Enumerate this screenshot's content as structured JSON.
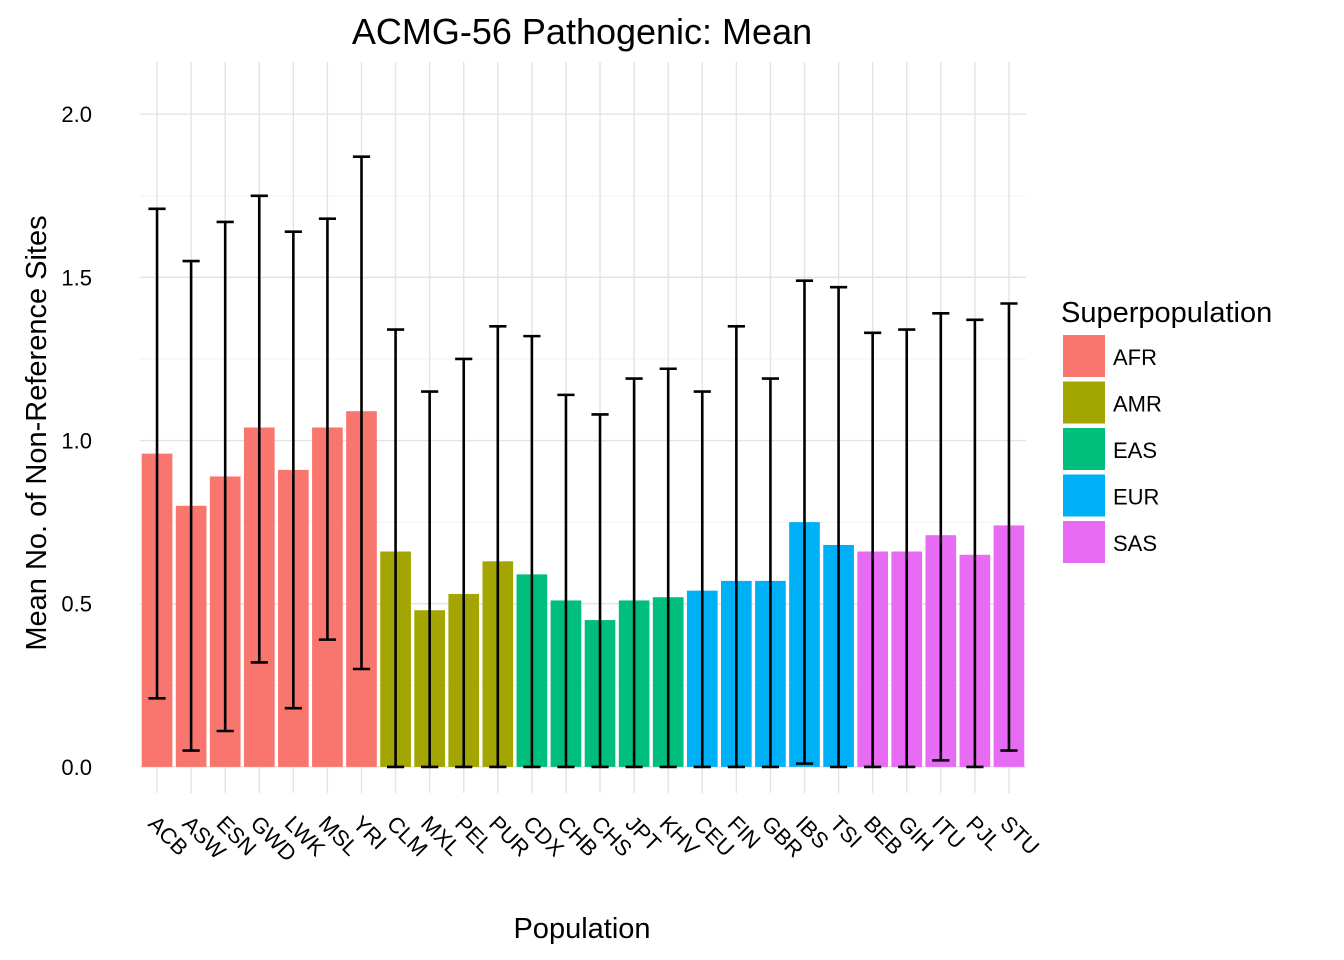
{
  "chart_data": {
    "type": "bar",
    "title": "ACMG-56 Pathogenic: Mean",
    "xlabel": "Population",
    "ylabel": "Mean No. of Non-Reference Sites",
    "ylim": [
      -0.08,
      2.16
    ],
    "yticks": [
      0.0,
      0.5,
      1.0,
      1.5,
      2.0
    ],
    "ytick_labels": [
      "0.0",
      "0.5",
      "1.0",
      "1.5",
      "2.0"
    ],
    "grid": true,
    "legend": {
      "title": "Superpopulation",
      "placement": "right",
      "entries": [
        {
          "name": "AFR",
          "color": "#F8766D"
        },
        {
          "name": "AMR",
          "color": "#A3A500"
        },
        {
          "name": "EAS",
          "color": "#00BF7D"
        },
        {
          "name": "EUR",
          "color": "#00B0F6"
        },
        {
          "name": "SAS",
          "color": "#E76BF3"
        }
      ]
    },
    "categories": [
      "ACB",
      "ASW",
      "ESN",
      "GWD",
      "LWK",
      "MSL",
      "YRI",
      "CLM",
      "MXL",
      "PEL",
      "PUR",
      "CDX",
      "CHB",
      "CHS",
      "JPT",
      "KHV",
      "CEU",
      "FIN",
      "GBR",
      "IBS",
      "TSI",
      "BEB",
      "GIH",
      "ITU",
      "PJL",
      "STU"
    ],
    "groups": [
      "AFR",
      "AFR",
      "AFR",
      "AFR",
      "AFR",
      "AFR",
      "AFR",
      "AMR",
      "AMR",
      "AMR",
      "AMR",
      "EAS",
      "EAS",
      "EAS",
      "EAS",
      "EAS",
      "EUR",
      "EUR",
      "EUR",
      "EUR",
      "EUR",
      "SAS",
      "SAS",
      "SAS",
      "SAS",
      "SAS"
    ],
    "values": [
      0.96,
      0.8,
      0.89,
      1.04,
      0.91,
      1.04,
      1.09,
      0.66,
      0.48,
      0.53,
      0.63,
      0.59,
      0.51,
      0.45,
      0.51,
      0.52,
      0.54,
      0.57,
      0.57,
      0.75,
      0.68,
      0.66,
      0.66,
      0.71,
      0.65,
      0.74
    ],
    "error_low": [
      0.21,
      0.05,
      0.11,
      0.32,
      0.18,
      0.39,
      0.3,
      0.0,
      0.0,
      0.0,
      0.0,
      0.0,
      0.0,
      0.0,
      0.0,
      0.0,
      0.0,
      0.0,
      0.0,
      0.01,
      0.0,
      0.0,
      0.0,
      0.02,
      0.0,
      0.05
    ],
    "error_high": [
      1.71,
      1.55,
      1.67,
      1.75,
      1.64,
      1.68,
      1.87,
      1.34,
      1.15,
      1.25,
      1.35,
      1.32,
      1.14,
      1.08,
      1.19,
      1.22,
      1.15,
      1.35,
      1.19,
      1.49,
      1.47,
      1.33,
      1.34,
      1.39,
      1.37,
      1.42
    ]
  }
}
